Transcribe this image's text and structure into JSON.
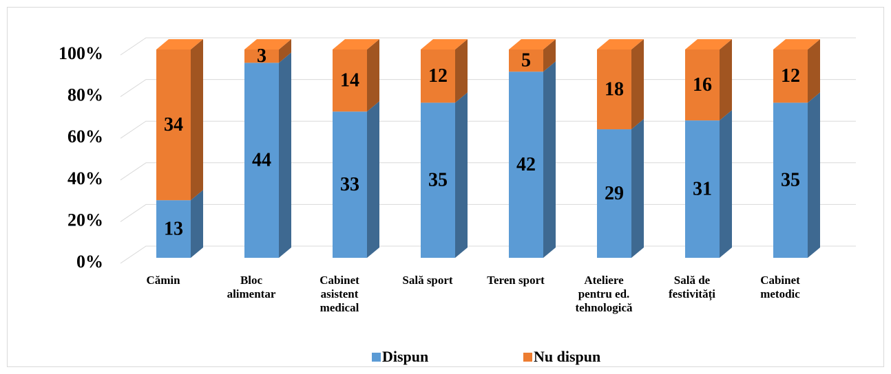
{
  "chart_data": {
    "type": "bar",
    "stacking": "percent",
    "three_d": true,
    "grid": true,
    "categories": [
      "Cămin",
      "Bloc alimentar",
      "Cabinet asistent medical",
      "Sală sport",
      "Teren sport",
      "Ateliere pentru ed. tehnologică",
      "Sală de festivități",
      "Cabinet metodic"
    ],
    "series": [
      {
        "name": "Dispun",
        "color": "#5b9bd5",
        "values": [
          13,
          44,
          33,
          35,
          42,
          29,
          31,
          35
        ]
      },
      {
        "name": "Nu dispun",
        "color": "#ed7d31",
        "values": [
          34,
          3,
          14,
          12,
          5,
          18,
          16,
          12
        ]
      }
    ],
    "ylim": [
      0,
      100
    ],
    "yticks": [
      {
        "value": 0,
        "label": "0%"
      },
      {
        "value": 20,
        "label": "20%"
      },
      {
        "value": 40,
        "label": "40%"
      },
      {
        "value": 60,
        "label": "60%"
      },
      {
        "value": 80,
        "label": "80%"
      },
      {
        "value": 100,
        "label": "100%"
      }
    ],
    "legend": "bottom"
  }
}
